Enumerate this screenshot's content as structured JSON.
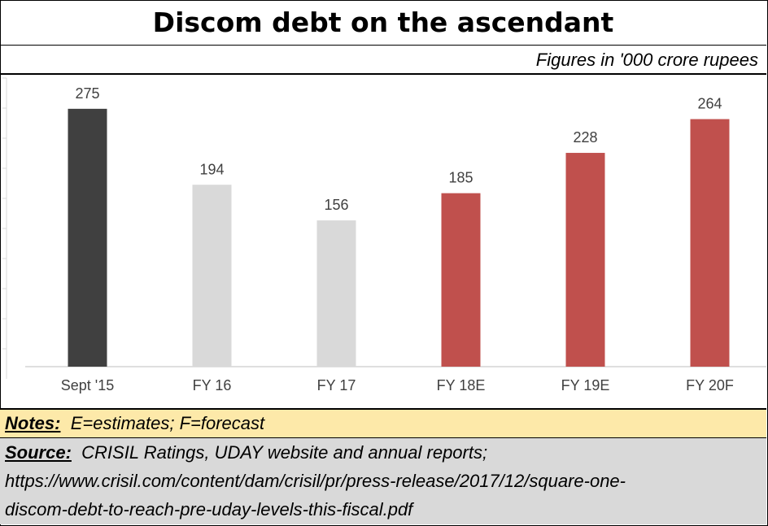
{
  "title": "Discom debt on the ascendant",
  "subtitle": "Figures in '000 crore rupees",
  "colors": {
    "dark": "#404040",
    "grey": "#d9d9d9",
    "red": "#c0504d",
    "notes_bg": "#fde9a9",
    "source_bg": "#d9d9d9"
  },
  "chart_data": {
    "type": "bar",
    "categories": [
      "Sept '15",
      "FY 16",
      "FY 17",
      "FY 18E",
      "FY 19E",
      "FY 20F"
    ],
    "values": [
      275,
      194,
      156,
      185,
      228,
      264
    ],
    "bar_colors": [
      "#404040",
      "#d9d9d9",
      "#d9d9d9",
      "#c0504d",
      "#c0504d",
      "#c0504d"
    ],
    "ylim": [
      0,
      300
    ],
    "grid": false,
    "title": "",
    "xlabel": "",
    "ylabel": ""
  },
  "notes": {
    "label": "Notes:",
    "text": "E=estimates; F=forecast"
  },
  "source": {
    "label": "Source:",
    "text": "CRISIL Ratings, UDAY website and annual reports;",
    "url_line1": "https://www.crisil.com/content/dam/crisil/pr/press-release/2017/12/square-one-",
    "url_line2": "discom-debt-to-reach-pre-uday-levels-this-fiscal.pdf"
  }
}
